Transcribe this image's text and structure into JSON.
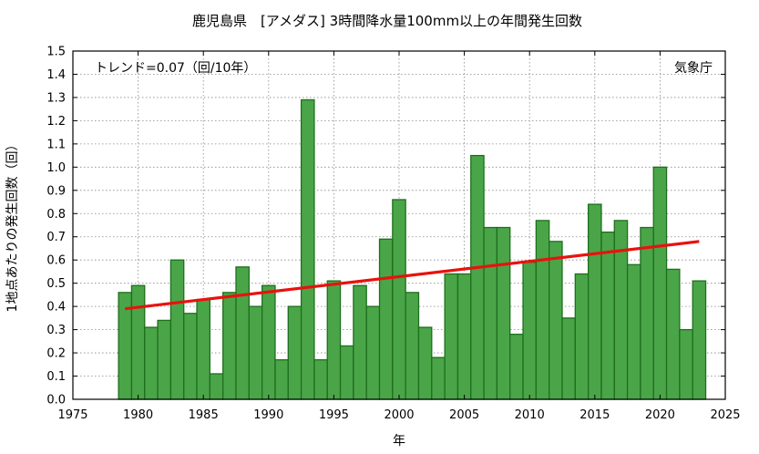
{
  "chart_data": {
    "type": "bar",
    "title": "鹿児島県　[アメダス] 3時間降水量100mm以上の年間発生回数",
    "xlabel": "年",
    "ylabel": "1地点あたりの発生回数（回）",
    "xlim": [
      1975,
      2025
    ],
    "ylim": [
      0,
      1.5
    ],
    "x_ticks": [
      1975,
      1980,
      1985,
      1990,
      1995,
      2000,
      2005,
      2010,
      2015,
      2020,
      2025
    ],
    "y_ticks": [
      0.0,
      0.1,
      0.2,
      0.3,
      0.4,
      0.5,
      0.6,
      0.7,
      0.8,
      0.9,
      1.0,
      1.1,
      1.2,
      1.3,
      1.4,
      1.5
    ],
    "grid": true,
    "bar_color": "#4aa548",
    "bar_edge_color": "#1e6f1c",
    "trend_color": "#e8120e",
    "trend_label": "トレンド=0.07（回/10年）",
    "source_label": "気象庁",
    "trend": {
      "x": [
        1979,
        2023
      ],
      "y": [
        0.39,
        0.68
      ]
    },
    "x": [
      1979,
      1980,
      1981,
      1982,
      1983,
      1984,
      1985,
      1986,
      1987,
      1988,
      1989,
      1990,
      1991,
      1992,
      1993,
      1994,
      1995,
      1996,
      1997,
      1998,
      1999,
      2000,
      2001,
      2002,
      2003,
      2004,
      2005,
      2006,
      2007,
      2008,
      2009,
      2010,
      2011,
      2012,
      2013,
      2014,
      2015,
      2016,
      2017,
      2018,
      2019,
      2020,
      2021,
      2022,
      2023
    ],
    "values": [
      0.46,
      0.49,
      0.31,
      0.34,
      0.6,
      0.37,
      0.43,
      0.11,
      0.46,
      0.57,
      0.4,
      0.49,
      0.17,
      0.4,
      1.29,
      0.17,
      0.51,
      0.23,
      0.49,
      0.4,
      0.69,
      0.86,
      0.46,
      0.31,
      0.18,
      0.54,
      0.54,
      1.05,
      0.74,
      0.74,
      0.28,
      0.59,
      0.77,
      0.68,
      0.35,
      0.54,
      0.84,
      0.72,
      0.77,
      0.58,
      0.74,
      1.0,
      0.56,
      0.3,
      0.51
    ]
  }
}
